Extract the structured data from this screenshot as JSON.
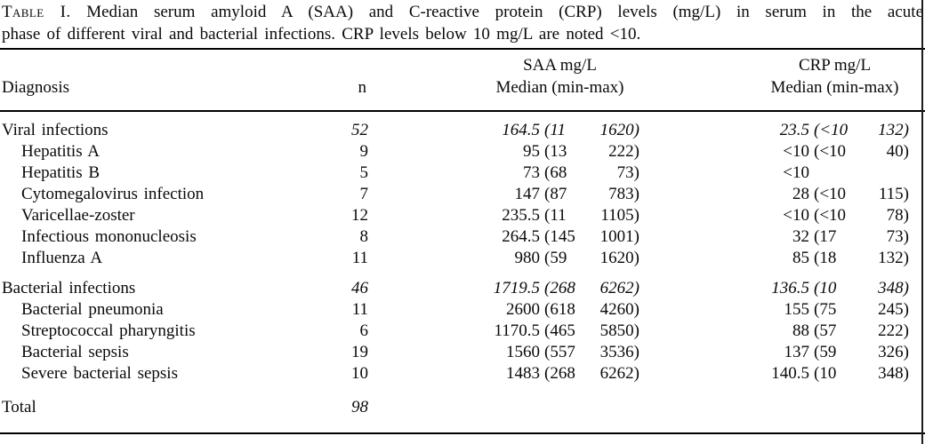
{
  "caption": {
    "label": "Table I.",
    "line1": "Median serum amyloid A (SAA) and C-reactive protein (CRP) levels (mg/L) in serum in the acute",
    "line2": "phase of different viral and bacterial infections. CRP levels below 10 mg/L are noted <10."
  },
  "header": {
    "diagnosis": "Diagnosis",
    "n": "n",
    "saa_title": "SAA mg/L",
    "saa_sub": "Median (min-max)",
    "crp_title": "CRP mg/L",
    "crp_sub": "Median (min-max)"
  },
  "table": {
    "rows": [
      {
        "kind": "group",
        "diagnosis": "Viral infections",
        "n": "52",
        "saa_med": "164.5",
        "saa_lo": "(11",
        "saa_hi": "1620)",
        "crp_med": "23.5",
        "crp_lo": "(<10",
        "crp_hi": "132)"
      },
      {
        "kind": "sub",
        "diagnosis": "Hepatitis A",
        "n": "9",
        "saa_med": "95",
        "saa_lo": "(13",
        "saa_hi": "222)",
        "crp_med": "<10",
        "crp_lo": "(<10",
        "crp_hi": "40)"
      },
      {
        "kind": "sub",
        "diagnosis": "Hepatitis B",
        "n": "5",
        "saa_med": "73",
        "saa_lo": "(68",
        "saa_hi": "73)",
        "crp_med": "<10",
        "crp_lo": "",
        "crp_hi": ""
      },
      {
        "kind": "sub",
        "diagnosis": "Cytomegalovirus infection",
        "n": "7",
        "saa_med": "147",
        "saa_lo": "(87",
        "saa_hi": "783)",
        "crp_med": "28",
        "crp_lo": "(<10",
        "crp_hi": "115)"
      },
      {
        "kind": "sub",
        "diagnosis": "Varicellae-zoster",
        "n": "12",
        "saa_med": "235.5",
        "saa_lo": "(11",
        "saa_hi": "1105)",
        "crp_med": "<10",
        "crp_lo": "(<10",
        "crp_hi": "78)"
      },
      {
        "kind": "sub",
        "diagnosis": "Infectious mononucleosis",
        "n": "8",
        "saa_med": "264.5",
        "saa_lo": "(145",
        "saa_hi": "1001)",
        "crp_med": "32",
        "crp_lo": "(17",
        "crp_hi": "73)"
      },
      {
        "kind": "sub",
        "diagnosis": "Influenza A",
        "n": "11",
        "saa_med": "980",
        "saa_lo": "(59",
        "saa_hi": "1620)",
        "crp_med": "85",
        "crp_lo": "(18",
        "crp_hi": "132)"
      },
      {
        "kind": "group",
        "gap": "sm",
        "diagnosis": "Bacterial infections",
        "n": "46",
        "saa_med": "1719.5",
        "saa_lo": "(268",
        "saa_hi": "6262)",
        "crp_med": "136.5",
        "crp_lo": "(10",
        "crp_hi": "348)"
      },
      {
        "kind": "sub",
        "diagnosis": "Bacterial pneumonia",
        "n": "11",
        "saa_med": "2600",
        "saa_lo": "(618",
        "saa_hi": "4260)",
        "crp_med": "155",
        "crp_lo": "(75",
        "crp_hi": "245)"
      },
      {
        "kind": "sub",
        "diagnosis": "Streptococcal pharyngitis",
        "n": "6",
        "saa_med": "1170.5",
        "saa_lo": "(465",
        "saa_hi": "5850)",
        "crp_med": "88",
        "crp_lo": "(57",
        "crp_hi": "222)"
      },
      {
        "kind": "sub",
        "diagnosis": "Bacterial sepsis",
        "n": "19",
        "saa_med": "1560",
        "saa_lo": "(557",
        "saa_hi": "3536)",
        "crp_med": "137",
        "crp_lo": "(59",
        "crp_hi": "326)"
      },
      {
        "kind": "sub",
        "diagnosis": "Severe bacterial sepsis",
        "n": "10",
        "saa_med": "1483",
        "saa_lo": "(268",
        "saa_hi": "6262)",
        "crp_med": "140.5",
        "crp_lo": "(10",
        "crp_hi": "348)"
      },
      {
        "kind": "group",
        "gap": "lg",
        "diagnosis": "Total",
        "n": "98",
        "saa_med": "",
        "saa_lo": "",
        "saa_hi": "",
        "crp_med": "",
        "crp_lo": "",
        "crp_hi": ""
      }
    ]
  }
}
